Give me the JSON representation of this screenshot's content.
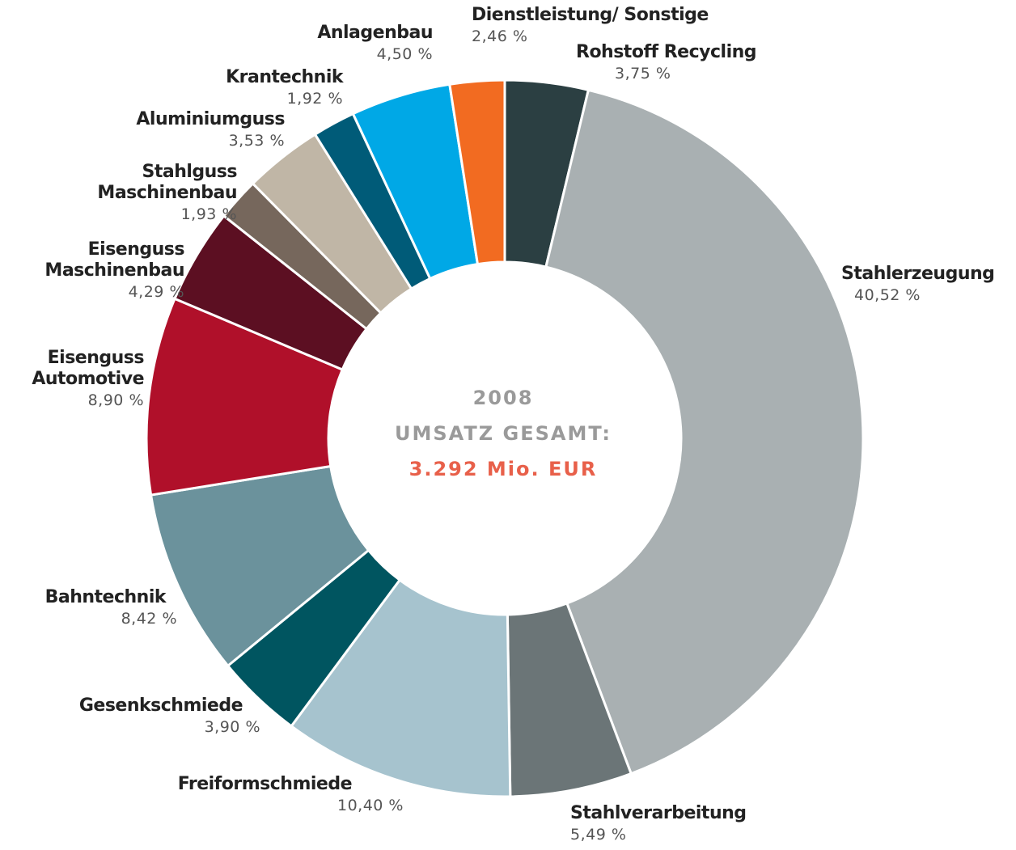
{
  "chart_data": {
    "type": "donut",
    "center_text": [
      "2008",
      "UMSATZ GESAMT:",
      "3.292 Mio. EUR"
    ],
    "categories": [
      "Rohstoff Recycling",
      "Stahlerzeugung",
      "Stahlverarbeitung",
      "Freiformschmiede",
      "Gesenkschmiede",
      "Bahntechnik",
      "Eisenguss\nAutomotive",
      "Eisenguss\nMaschinenbau",
      "Stahlguss\nMaschinenbau",
      "Aluminiumguss",
      "Krantechnik",
      "Anlagenbau",
      "Dienstleistung/ Sonstige"
    ],
    "values": [
      3.75,
      40.52,
      5.49,
      10.4,
      3.9,
      8.42,
      8.9,
      4.29,
      1.93,
      3.53,
      1.92,
      4.5,
      2.46
    ],
    "value_labels": [
      "3,75 %",
      "40,52 %",
      "5,49 %",
      "10,40 %",
      "3,90 %",
      "8,42 %",
      "8,90 %",
      "4,29 %",
      "1,93 %",
      "3,53 %",
      "1,92 %",
      "4,50 %",
      "2,46 %"
    ],
    "colors": [
      "#2b3f42",
      "#a9b0b2",
      "#6b7577",
      "#a6c3ce",
      "#005560",
      "#6b929c",
      "#b0102a",
      "#5c0f22",
      "#76675c",
      "#c0b6a6",
      "#005b78",
      "#00a8e6",
      "#f26b21"
    ]
  }
}
